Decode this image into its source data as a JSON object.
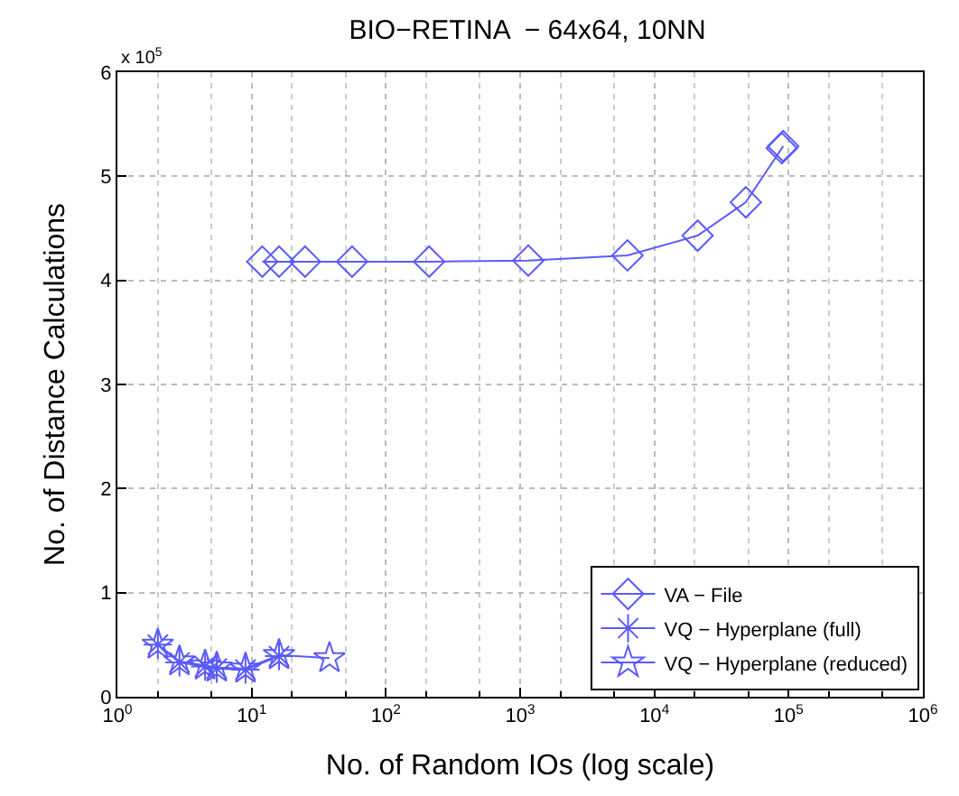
{
  "chart_data": {
    "type": "line",
    "title": "BIO−RETINA  − 64x64, 10NN",
    "xlabel": "No. of Random IOs (log scale)",
    "ylabel": "No. of Distance Calculations",
    "log": "x",
    "grid": true,
    "legend": "bottom right",
    "line_style": "solid",
    "xlim": [
      1,
      1000000
    ],
    "xticks": [
      {
        "value": 1,
        "label": "10$^{0}$"
      },
      {
        "value": 10,
        "label": "10$^{1}$"
      },
      {
        "value": 100,
        "label": "10$^{2}$"
      },
      {
        "value": 1000,
        "label": "10$^{3}$"
      },
      {
        "value": 10000,
        "label": "10$^{4}$"
      },
      {
        "value": 100000,
        "label": "10$^{5}$"
      },
      {
        "value": 1000000,
        "label": "10$^{6}$"
      }
    ],
    "ylim": [
      0,
      6
    ],
    "yticks": [
      0,
      1,
      2,
      3,
      4,
      5,
      6
    ],
    "annotations": [
      "x 10$^{5}$"
    ],
    "series": [
      {
        "name": "VA − File",
        "color": "#5a5aff",
        "marker": "diamond",
        "x": [
          12,
          16,
          25,
          56,
          210,
          1150,
          6300,
          21000,
          48000,
          89000,
          91000
        ],
        "values": [
          4.18,
          4.18,
          4.18,
          4.18,
          4.18,
          4.19,
          4.24,
          4.43,
          4.75,
          5.27,
          5.29
        ]
      },
      {
        "name": "VQ − Hyperplane (full)",
        "color": "#5a5aff",
        "marker": "cross",
        "x": [
          2,
          2.9,
          4.5,
          5.5,
          9,
          16
        ],
        "values": [
          0.5,
          0.33,
          0.29,
          0.27,
          0.26,
          0.39
        ]
      },
      {
        "name": "VQ − Hyperplane (reduced)",
        "color": "#5a5aff",
        "marker": "star",
        "x": [
          2,
          2.9,
          4.5,
          5.5,
          9,
          16,
          38
        ],
        "values": [
          0.5,
          0.34,
          0.3,
          0.28,
          0.27,
          0.4,
          0.37
        ]
      }
    ]
  }
}
